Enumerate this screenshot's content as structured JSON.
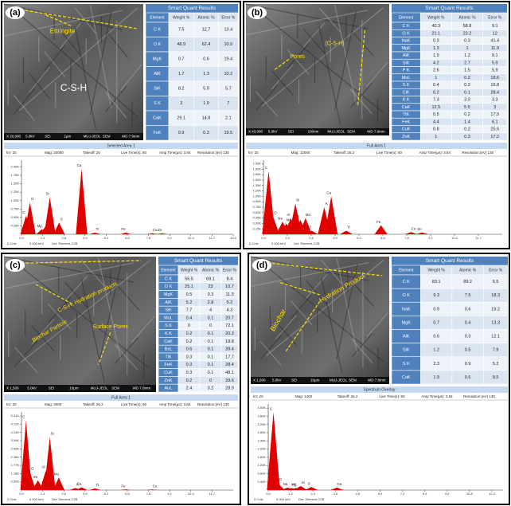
{
  "panels": [
    {
      "label": "(a)",
      "image": {
        "annotations": [
          "Ettringite",
          "C-S-H"
        ],
        "info": [
          "X 20,000",
          "5.0kV",
          "SEI",
          "1μm",
          "MUJ-JEOL",
          "SEM",
          "WD 7.9mm"
        ]
      },
      "table": {
        "title": "Smart Quant Results",
        "header": [
          "Element",
          "Weight %",
          "Atomic %",
          "Error %"
        ],
        "rows": [
          [
            "C K",
            7.5,
            12.7,
            13.4
          ],
          [
            "O K",
            48.9,
            62.4,
            10.9
          ],
          [
            "MgK",
            0.7,
            0.6,
            19.4
          ],
          [
            "AlK",
            1.7,
            1.3,
            10.2
          ],
          [
            "SiK",
            8.2,
            5.9,
            5.7
          ],
          [
            "S K",
            3,
            1.9,
            7
          ],
          [
            "CaK",
            29.1,
            14.8,
            2.1
          ],
          [
            "FeK",
            0.9,
            0.3,
            19.5
          ]
        ]
      },
      "spectrum": {
        "title": "Selected Area 1",
        "info": [
          "kV: 20",
          "Mag: 20000",
          "Takeoff: 25",
          "Live Time(s): 60",
          "Amp Time(µs): 3.84",
          "Resolution:(eV) 130"
        ],
        "color": "#e00000",
        "xlim": [
          0,
          13
        ],
        "xticks": [
          {
            "value": 0,
            "label": "0.0"
          },
          1.3,
          2.6,
          3.9,
          5.2,
          6.5,
          7.8,
          9.1,
          10.4,
          11.7,
          {
            "value": 13,
            "label": "13.0"
          }
        ],
        "ylim": [
          0,
          2.2
        ],
        "yticks": [
          {
            "value": 0.25,
            "label": "0.25K"
          },
          {
            "value": 0.5,
            "label": "0.50K"
          },
          {
            "value": 0.75,
            "label": "0.75K"
          },
          {
            "value": 1,
            "label": "1.00K"
          },
          {
            "value": 1.25,
            "label": "1.25K"
          },
          {
            "value": 1.5,
            "label": "1.50K"
          },
          {
            "value": 1.75,
            "label": "1.75K"
          },
          {
            "value": 2,
            "label": "2.00K"
          }
        ],
        "peaks": {
          "labels": [
            "C",
            "O",
            "Mg",
            "Al",
            "Si",
            "S",
            "Ca",
            "Ti",
            "Fe",
            "Cu",
            "Zn"
          ],
          "energies": [
            0.28,
            0.52,
            1.25,
            1.49,
            1.74,
            2.31,
            3.69,
            4.51,
            6.4,
            8.04,
            8.63
          ],
          "counts": [
            0.55,
            0.95,
            0.15,
            0.25,
            1.1,
            0.35,
            1.95,
            0.05,
            0.05,
            0.03,
            0.03
          ]
        },
        "footer": [
          "0 Cnts",
          "0.000 keV",
          "Det: Element-C2B"
        ]
      }
    },
    {
      "label": "(b)",
      "image": {
        "annotations": [
          "Pores",
          "(C-S-H)"
        ],
        "info": [
          "X 43,000",
          "5.0kV",
          "SEI",
          "100nm",
          "MUJ-JEOL",
          "SEM",
          "WD 7.9mm"
        ]
      },
      "table": {
        "title": "Smart Quant Results",
        "header": [
          "Element",
          "Weight %",
          "Atomic %",
          "Error %"
        ],
        "rows": [
          [
            "C K",
            40.3,
            58.8,
            9.1
          ],
          [
            "O K",
            21.1,
            23.2,
            12
          ],
          [
            "NaK",
            0.3,
            0.3,
            41.4
          ],
          [
            "MgK",
            1.3,
            1,
            11.9
          ],
          [
            "AlK",
            1.9,
            1.2,
            9.1
          ],
          [
            "SiK",
            4.2,
            2.7,
            5.9
          ],
          [
            "P K",
            2.6,
            1.5,
            5.9
          ],
          [
            "MoL",
            1,
            0.2,
            18.6
          ],
          [
            "S K",
            0.4,
            0.2,
            16.8
          ],
          [
            "ClK",
            0.2,
            0.1,
            28.4
          ],
          [
            "K K",
            7.3,
            3.3,
            3.3
          ],
          [
            "CaK",
            12.5,
            5.5,
            3
          ],
          [
            "TiK",
            0.5,
            0.2,
            17.9
          ],
          [
            "FeK",
            4.4,
            1.4,
            6.1
          ],
          [
            "CuK",
            0.8,
            0.2,
            25.6
          ],
          [
            "ZnK",
            1,
            0.3,
            17.2
          ]
        ]
      },
      "spectrum": {
        "title": "Full Area 1",
        "info": [
          "kV: 20",
          "Mag: 12000",
          "Takeoff: 26.2",
          "Live Time(s): 60",
          "Amp Time(µs): 3.84",
          "Resolution:(eV) 130"
        ],
        "color": "#e00000",
        "xlim": [
          0,
          13
        ],
        "xticks": [
          {
            "value": 0,
            "label": "0.0"
          },
          1.3,
          2.6,
          3.9,
          5.2,
          6.5,
          7.8,
          9.1,
          10.4,
          11.7
        ],
        "ylim": [
          0,
          2.05
        ],
        "yticks": [
          {
            "value": 0.15,
            "label": "0.15K"
          },
          {
            "value": 0.3,
            "label": "0.30K"
          },
          {
            "value": 0.45,
            "label": "0.45K"
          },
          {
            "value": 0.6,
            "label": "0.60K"
          },
          {
            "value": 0.75,
            "label": "0.75K"
          },
          {
            "value": 0.9,
            "label": "0.90K"
          },
          {
            "value": 1.05,
            "label": "1.05K"
          },
          {
            "value": 1.2,
            "label": "1.20K"
          },
          {
            "value": 1.35,
            "label": "1.35K"
          },
          {
            "value": 1.5,
            "label": "1.50K"
          },
          {
            "value": 1.65,
            "label": "1.65K"
          },
          {
            "value": 1.8,
            "label": "1.80K"
          },
          {
            "value": 1.95,
            "label": "1.95K"
          }
        ],
        "peaks": {
          "labels": [
            "C",
            "O",
            "Na",
            "Mg",
            "Al",
            "Si",
            "P",
            "Mo",
            "Cl",
            "K",
            "Ca",
            "Ti",
            "Fe",
            "Cu",
            "Zn"
          ],
          "energies": [
            0.28,
            0.52,
            1.04,
            1.25,
            1.49,
            1.74,
            2.01,
            2.29,
            2.62,
            3.31,
            3.69,
            4.51,
            6.4,
            8.04,
            8.63
          ],
          "counts": [
            1.75,
            0.5,
            0.35,
            0.3,
            0.45,
            0.85,
            0.4,
            0.45,
            0.1,
            0.75,
            1.05,
            0.1,
            0.25,
            0.06,
            0.05
          ]
        },
        "footer": [
          "0 Cnts",
          "0.000 keV",
          "Det: Element-C2B"
        ]
      }
    },
    {
      "label": "(c)",
      "image": {
        "annotations": [
          "C-S-H, Hydration products",
          "Biochar Particle",
          "Surface Pores"
        ],
        "info": [
          "X 1,500",
          "5.0kV",
          "SEI",
          "10μm",
          "MUJ-JEOL",
          "SEM",
          "WD 7.8mm"
        ]
      },
      "table": {
        "title": "Smart Quant Results",
        "header": [
          "Element",
          "Weight %",
          "Atomic %",
          "Error %"
        ],
        "rows": [
          [
            "C K",
            56.5,
            69.1,
            8.4
          ],
          [
            "O K",
            25.1,
            23,
            10.7
          ],
          [
            "MgK",
            0.5,
            0.3,
            11.3
          ],
          [
            "AlK",
            5.2,
            2.8,
            5.2
          ],
          [
            "SiK",
            7.7,
            4,
            4.3
          ],
          [
            "MoL",
            0.4,
            0.1,
            20.7
          ],
          [
            "S K",
            0,
            0,
            72.1
          ],
          [
            "K K",
            0.2,
            0.1,
            20.3
          ],
          [
            "CaK",
            0.2,
            0.1,
            18.8
          ],
          [
            "BaL",
            0.6,
            0.1,
            39.4
          ],
          [
            "TiK",
            0.3,
            0.1,
            17.7
          ],
          [
            "FeK",
            0.3,
            0.1,
            28.4
          ],
          [
            "CuK",
            0.3,
            0.1,
            48.1
          ],
          [
            "ZnK",
            0.2,
            0,
            39.6
          ],
          [
            "AuL",
            2.4,
            0.2,
            28.9
          ]
        ]
      },
      "spectrum": {
        "title": "Full Area 1",
        "info": [
          "kV: 20",
          "Mag: 4000",
          "Takeoff: 26.2",
          "Live Time(s): 60",
          "Amp Time(µs): 3.84",
          "Resolution:(eV) 130"
        ],
        "color": "#e00000",
        "xlim": [
          0,
          13
        ],
        "xticks": [
          {
            "value": 0,
            "label": "0.0"
          },
          1.3,
          2.6,
          3.9,
          5.2,
          6.5,
          7.8,
          9.1,
          10.4,
          11.7
        ],
        "ylim": [
          0,
          5.6
        ],
        "yticks": [
          {
            "value": 0.59,
            "label": "0.59K"
          },
          {
            "value": 1.18,
            "label": "1.18K"
          },
          {
            "value": 1.77,
            "label": "1.77K"
          },
          {
            "value": 2.36,
            "label": "2.36K"
          },
          {
            "value": 2.95,
            "label": "2.95K"
          },
          {
            "value": 3.54,
            "label": "3.54K"
          },
          {
            "value": 4.13,
            "label": "4.13K"
          },
          {
            "value": 4.72,
            "label": "4.72K"
          },
          {
            "value": 5.31,
            "label": "5.31K"
          }
        ],
        "peaks": {
          "labels": [
            "C",
            "O",
            "Zn",
            "Mg",
            "Al",
            "Si",
            "Mo",
            "K",
            "Ca",
            "Ti",
            "Fe",
            "Cu"
          ],
          "energies": [
            0.28,
            0.52,
            1.01,
            1.25,
            1.49,
            1.74,
            2.29,
            3.31,
            3.69,
            4.51,
            6.4,
            8.04
          ],
          "counts": [
            5,
            1.3,
            0.7,
            0.3,
            1.4,
            3.8,
            0.9,
            0.15,
            0.2,
            0.12,
            0.05,
            0.04
          ]
        },
        "footer": [
          "0 Cnts",
          "0.000 keV",
          "Det: Element-C2B"
        ]
      }
    },
    {
      "label": "(d)",
      "image": {
        "annotations": [
          "Biochar",
          "Hydration Product"
        ],
        "info": [
          "X 1,500",
          "5.0kV",
          "SEI",
          "10μm",
          "MUJ-JEOL",
          "SEM",
          "WD 7.8mm"
        ]
      },
      "table": {
        "title": "Smart Quant Results",
        "header": [
          "Element",
          "Weight %",
          "Atomic %",
          "Error %"
        ],
        "rows": [
          [
            "C K",
            83.1,
            89.2,
            6.5
          ],
          [
            "O K",
            9.3,
            7.5,
            18.3
          ],
          [
            "NaK",
            0.9,
            0.6,
            19.2
          ],
          [
            "MgK",
            0.7,
            0.4,
            13.3
          ],
          [
            "AlK",
            0.6,
            0.3,
            12.1
          ],
          [
            "SiK",
            1.2,
            0.5,
            7.9
          ],
          [
            "S K",
            2.3,
            0.9,
            5.2
          ],
          [
            "CaK",
            1.9,
            0.6,
            8.5
          ]
        ]
      },
      "spectrum": {
        "title": "Spectrum Overlay",
        "info": [
          "kV: 20",
          "Mag: 1400",
          "Takeoff: 26.2",
          "Live Time(s): 60",
          "Amp Time(µs): 3.84",
          "Resolution:(eV) 130"
        ],
        "color": "#e00000",
        "xlim": [
          0,
          12.6
        ],
        "xticks": [
          {
            "value": 0,
            "label": "0.0"
          },
          1.2,
          2.4,
          3.6,
          4.8,
          {
            "value": 6,
            "label": "6.0"
          },
          7.2,
          8.4,
          9.6,
          10.8,
          {
            "value": 12,
            "label": "12.0"
          }
        ],
        "ylim": [
          0,
          4.2
        ],
        "yticks": [
          {
            "value": 0.4,
            "label": "0.40K"
          },
          {
            "value": 0.8,
            "label": "0.80K"
          },
          {
            "value": 1.2,
            "label": "1.20K"
          },
          {
            "value": 1.6,
            "label": "1.60K"
          },
          {
            "value": 2,
            "label": "2.00K"
          },
          {
            "value": 2.4,
            "label": "2.40K"
          },
          {
            "value": 2.8,
            "label": "2.80K"
          },
          {
            "value": 3.2,
            "label": "3.20K"
          },
          {
            "value": 3.6,
            "label": "3.60K"
          },
          {
            "value": 4,
            "label": "4.00K"
          }
        ],
        "peaks": {
          "labels": [
            "C",
            "O",
            "Na",
            "Mg",
            "Al",
            "Si",
            "S",
            "Ca"
          ],
          "energies": [
            0.28,
            0.52,
            1.04,
            1.25,
            1.49,
            1.74,
            2.31,
            3.69
          ],
          "counts": [
            3.8,
            0.35,
            0.12,
            0.1,
            0.1,
            0.2,
            0.15,
            0.12
          ]
        },
        "footer": [
          "0 Cnts",
          "0.000 keV",
          "Det: Element-C2B"
        ]
      }
    }
  ]
}
